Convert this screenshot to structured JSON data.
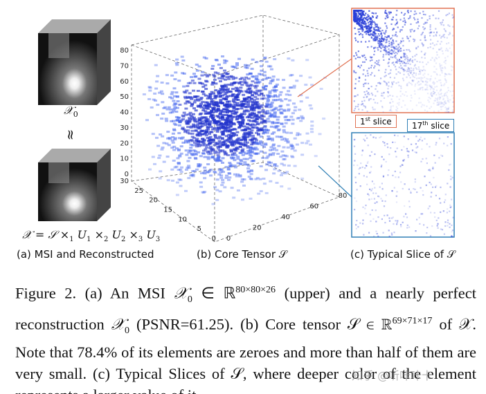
{
  "panel_a": {
    "top_label": [
      "𝒳",
      "0"
    ],
    "approx": "≈",
    "formula": [
      "𝒳 = 𝒮 ×",
      "1",
      " U",
      "1",
      " ×",
      "2",
      " U",
      "2",
      " ×",
      "3",
      " U",
      "3"
    ],
    "caption": "(a) MSI and Reconstructed"
  },
  "panel_b": {
    "vertical_ticks": [
      0,
      10,
      20,
      30,
      40,
      50,
      60,
      70,
      80
    ],
    "depth_ticks": [
      30,
      25,
      20,
      15,
      10,
      5,
      0
    ],
    "right_ticks": [
      0,
      20,
      40,
      60,
      80
    ],
    "caption": "(b) Core Tensor 𝒮"
  },
  "panel_c": {
    "slice_1": [
      "1",
      "st",
      " slice"
    ],
    "slice_17": [
      "17",
      "th",
      " slice"
    ],
    "caption": "(c) Typical Slice of 𝒮"
  },
  "caption": {
    "parts": [
      "Figure 2. (a) An MSI ",
      "𝒳",
      "0",
      " ∈ ℝ",
      "80×80×26",
      " (upper) and a nearly perfect reconstruction ",
      "𝒳",
      "0",
      " (PSNR=61.25). (b) Core tensor 𝒮 ∈ ℝ",
      "69×71×17",
      " of 𝒳. Note that 78.4% of its elements are zeroes and more than half of them are very small. (c) Typical Slices of 𝒮, where deeper color of the element represents a larger value of it."
    ]
  },
  "watermark": "知乎 @听咔咔卡"
}
